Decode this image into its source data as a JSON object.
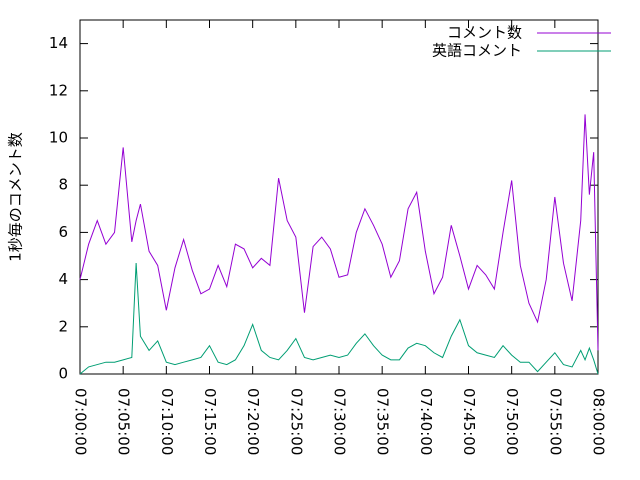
{
  "chart_data": {
    "type": "line",
    "y_label": "1秒毎のコメント数",
    "x": [
      "07:00:00",
      "07:01:00",
      "07:02:00",
      "07:03:00",
      "07:04:00",
      "07:05:00",
      "07:06:00",
      "07:06:30",
      "07:07:00",
      "07:08:00",
      "07:09:00",
      "07:10:00",
      "07:11:00",
      "07:12:00",
      "07:13:00",
      "07:14:00",
      "07:15:00",
      "07:16:00",
      "07:17:00",
      "07:18:00",
      "07:19:00",
      "07:20:00",
      "07:21:00",
      "07:22:00",
      "07:23:00",
      "07:24:00",
      "07:25:00",
      "07:26:00",
      "07:27:00",
      "07:28:00",
      "07:29:00",
      "07:30:00",
      "07:31:00",
      "07:32:00",
      "07:33:00",
      "07:34:00",
      "07:35:00",
      "07:36:00",
      "07:37:00",
      "07:38:00",
      "07:39:00",
      "07:40:00",
      "07:41:00",
      "07:42:00",
      "07:43:00",
      "07:44:00",
      "07:45:00",
      "07:46:00",
      "07:47:00",
      "07:48:00",
      "07:49:00",
      "07:50:00",
      "07:51:00",
      "07:52:00",
      "07:53:00",
      "07:54:00",
      "07:55:00",
      "07:56:00",
      "07:57:00",
      "07:58:00",
      "07:58:30",
      "07:59:00",
      "07:59:30",
      "08:00:00"
    ],
    "series": [
      {
        "name": "コメント数",
        "color": "#9400d3",
        "values": [
          4.0,
          5.5,
          6.5,
          5.5,
          6.0,
          9.6,
          5.6,
          6.5,
          7.2,
          5.2,
          4.6,
          2.7,
          4.5,
          5.7,
          4.4,
          3.4,
          3.6,
          4.6,
          3.7,
          5.5,
          5.3,
          4.5,
          4.9,
          4.6,
          8.3,
          6.5,
          5.8,
          2.6,
          5.4,
          5.8,
          5.3,
          4.1,
          4.2,
          6.0,
          7.0,
          6.3,
          5.5,
          4.1,
          4.8,
          7.0,
          7.7,
          5.2,
          3.4,
          4.1,
          6.3,
          5.0,
          3.6,
          4.6,
          4.2,
          3.6,
          6.0,
          8.2,
          4.6,
          3.0,
          2.2,
          4.0,
          7.5,
          4.7,
          3.1,
          6.5,
          11.0,
          7.6,
          9.4,
          1.0
        ]
      },
      {
        "name": "英語コメント",
        "color": "#009e73",
        "values": [
          0.0,
          0.3,
          0.4,
          0.5,
          0.5,
          0.6,
          0.7,
          4.7,
          1.6,
          1.0,
          1.4,
          0.5,
          0.4,
          0.5,
          0.6,
          0.7,
          1.2,
          0.5,
          0.4,
          0.6,
          1.2,
          2.1,
          1.0,
          0.7,
          0.6,
          1.0,
          1.5,
          0.7,
          0.6,
          0.7,
          0.8,
          0.7,
          0.8,
          1.3,
          1.7,
          1.2,
          0.8,
          0.6,
          0.6,
          1.1,
          1.3,
          1.2,
          0.9,
          0.7,
          1.6,
          2.3,
          1.2,
          0.9,
          0.8,
          0.7,
          1.2,
          0.8,
          0.5,
          0.5,
          0.1,
          0.5,
          0.9,
          0.4,
          0.3,
          1.0,
          0.6,
          1.1,
          0.6,
          0.0
        ]
      }
    ],
    "xlim": [
      "07:00:00",
      "08:00:00"
    ],
    "xticks": [
      "07:00:00",
      "07:05:00",
      "07:10:00",
      "07:15:00",
      "07:20:00",
      "07:25:00",
      "07:30:00",
      "07:35:00",
      "07:40:00",
      "07:45:00",
      "07:50:00",
      "07:55:00",
      "08:00:00"
    ],
    "ylim": [
      0,
      15
    ],
    "yticks": [
      0,
      2,
      4,
      6,
      8,
      10,
      12,
      14
    ],
    "legend": "top-right"
  }
}
